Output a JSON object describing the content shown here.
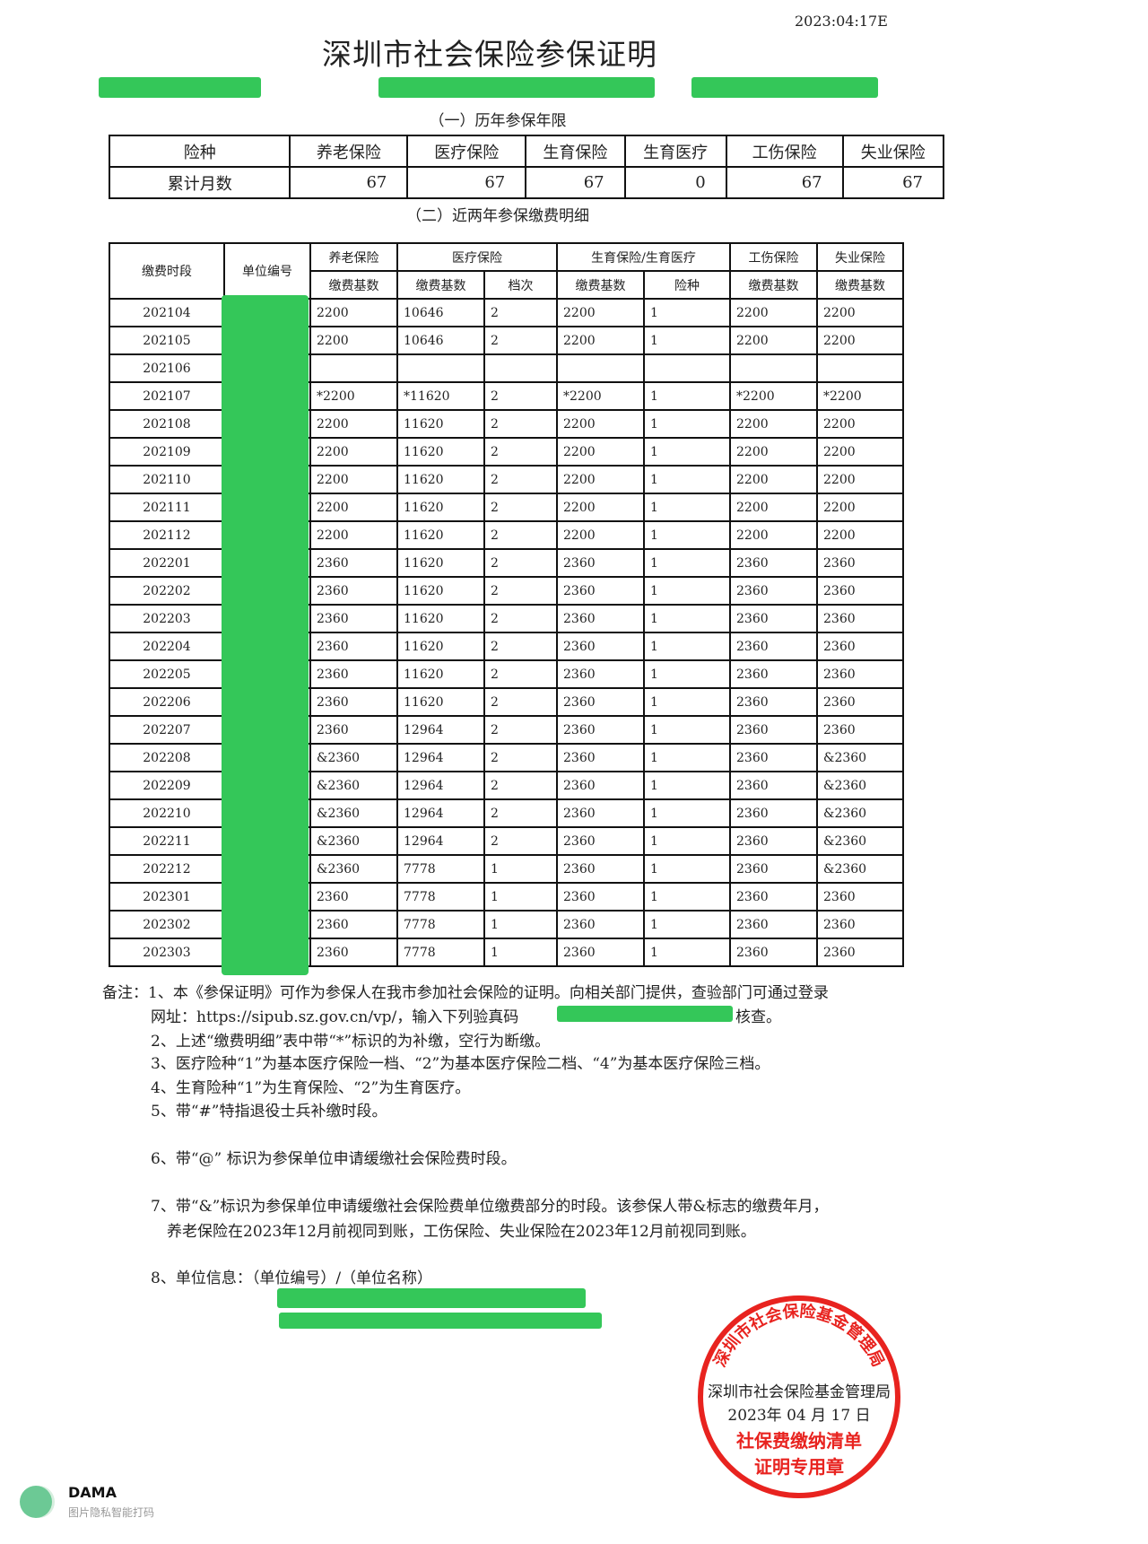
{
  "header": {
    "date": "2023:04:17E",
    "title": "深圳市社会保险参保证明"
  },
  "section1": {
    "title": "（一）历年参保年限",
    "headers": [
      "险种",
      "养老保险",
      "医疗保险",
      "生育保险",
      "生育医疗",
      "工伤保险",
      "失业保险"
    ],
    "row_label": "累计月数",
    "values": [
      "67",
      "67",
      "67",
      "0",
      "67",
      "67"
    ]
  },
  "section2": {
    "title": "（二）近两年参保缴费明细",
    "head_period": "缴费时段",
    "head_unit": "单位编号",
    "groups": [
      "养老保险",
      "医疗保险",
      "生育保险/生育医疗",
      "工伤保险",
      "失业保险"
    ],
    "subheads": [
      "缴费基数",
      "缴费基数",
      "档次",
      "缴费基数",
      "险种",
      "缴费基数",
      "缴费基数"
    ],
    "rows": [
      [
        "202104",
        "2200",
        "10646",
        "2",
        "2200",
        "1",
        "2200",
        "2200"
      ],
      [
        "202105",
        "2200",
        "10646",
        "2",
        "2200",
        "1",
        "2200",
        "2200"
      ],
      [
        "202106",
        "",
        "",
        "",
        "",
        "",
        "",
        ""
      ],
      [
        "202107",
        "*2200",
        "*11620",
        "2",
        "*2200",
        "1",
        "*2200",
        "*2200"
      ],
      [
        "202108",
        "2200",
        "11620",
        "2",
        "2200",
        "1",
        "2200",
        "2200"
      ],
      [
        "202109",
        "2200",
        "11620",
        "2",
        "2200",
        "1",
        "2200",
        "2200"
      ],
      [
        "202110",
        "2200",
        "11620",
        "2",
        "2200",
        "1",
        "2200",
        "2200"
      ],
      [
        "202111",
        "2200",
        "11620",
        "2",
        "2200",
        "1",
        "2200",
        "2200"
      ],
      [
        "202112",
        "2200",
        "11620",
        "2",
        "2200",
        "1",
        "2200",
        "2200"
      ],
      [
        "202201",
        "2360",
        "11620",
        "2",
        "2360",
        "1",
        "2360",
        "2360"
      ],
      [
        "202202",
        "2360",
        "11620",
        "2",
        "2360",
        "1",
        "2360",
        "2360"
      ],
      [
        "202203",
        "2360",
        "11620",
        "2",
        "2360",
        "1",
        "2360",
        "2360"
      ],
      [
        "202204",
        "2360",
        "11620",
        "2",
        "2360",
        "1",
        "2360",
        "2360"
      ],
      [
        "202205",
        "2360",
        "11620",
        "2",
        "2360",
        "1",
        "2360",
        "2360"
      ],
      [
        "202206",
        "2360",
        "11620",
        "2",
        "2360",
        "1",
        "2360",
        "2360"
      ],
      [
        "202207",
        "2360",
        "12964",
        "2",
        "2360",
        "1",
        "2360",
        "2360"
      ],
      [
        "202208",
        "&2360",
        "12964",
        "2",
        "2360",
        "1",
        "2360",
        "&2360"
      ],
      [
        "202209",
        "&2360",
        "12964",
        "2",
        "2360",
        "1",
        "2360",
        "&2360"
      ],
      [
        "202210",
        "&2360",
        "12964",
        "2",
        "2360",
        "1",
        "2360",
        "&2360"
      ],
      [
        "202211",
        "&2360",
        "12964",
        "2",
        "2360",
        "1",
        "2360",
        "&2360"
      ],
      [
        "202212",
        "&2360",
        "7778",
        "1",
        "2360",
        "1",
        "2360",
        "&2360"
      ],
      [
        "202301",
        "2360",
        "7778",
        "1",
        "2360",
        "1",
        "2360",
        "2360"
      ],
      [
        "202302",
        "2360",
        "7778",
        "1",
        "2360",
        "1",
        "2360",
        "2360"
      ],
      [
        "202303",
        "2360",
        "7778",
        "1",
        "2360",
        "1",
        "2360",
        "2360"
      ]
    ]
  },
  "notes": {
    "n1a": "备注：1、本《参保证明》可作为参保人在我市参加社会保险的证明。向相关部门提供，查验部门可通过登录",
    "n1b": "网址：https://sipub.sz.gov.cn/vp/，输入下列验真码",
    "n1c": "核查。",
    "n2": "2、上述“缴费明细”表中带“*”标识的为补缴，空行为断缴。",
    "n3": "3、医疗险种“1”为基本医疗保险一档、“2”为基本医疗保险二档、“4”为基本医疗保险三档。",
    "n4": "4、生育险种“1”为生育保险、“2”为生育医疗。",
    "n5": "5、带“#”特指退役士兵补缴时段。",
    "n6": "6、带“@” 标识为参保单位申请缓缴社会保险费时段。",
    "n7a": "7、带“&”标识为参保单位申请缓缴社会保险费单位缴费部分的时段。该参保人带&标志的缴费年月，",
    "n7b": "养老保险在2023年12月前视同到账，工伤保险、失业保险在2023年12月前视同到账。",
    "n8": "8、单位信息：（单位编号）/（单位名称）"
  },
  "stamp": {
    "ring_text": "深圳市社会保险基金管理局",
    "line1": "深圳市社会保险基金管理局",
    "line2": "2023年 04 月 17 日",
    "line3": "社保费缴纳清单",
    "line4": "证明专用章",
    "color": "#e8231f"
  },
  "watermark": {
    "name": "DAMA",
    "subtitle": "图片隐私智能打码"
  },
  "colors": {
    "redaction": "#34c759"
  }
}
